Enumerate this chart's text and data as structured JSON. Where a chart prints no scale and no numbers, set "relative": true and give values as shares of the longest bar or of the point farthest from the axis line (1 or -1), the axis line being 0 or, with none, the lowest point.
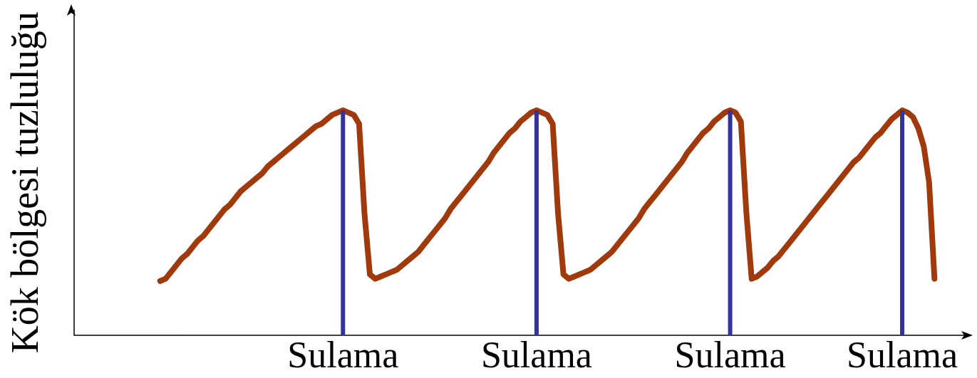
{
  "chart_data": {
    "type": "line",
    "ylabel": "Kök bölgesi tuzluluğu",
    "relative": true,
    "grid": false,
    "marker": "none",
    "line_style": "solid",
    "categories": [
      null,
      null,
      null,
      null,
      null,
      null,
      null,
      null,
      null,
      null,
      null,
      null,
      null,
      null,
      null,
      null,
      null,
      null,
      null,
      null,
      null,
      null,
      null,
      null,
      null,
      null,
      null,
      null,
      null,
      null,
      null,
      null,
      null,
      null,
      null,
      null,
      null,
      null,
      null,
      null,
      null,
      null,
      null,
      null,
      null,
      null,
      null,
      null,
      null,
      null,
      "Sulama",
      null,
      null,
      null,
      null,
      null,
      null,
      null,
      null,
      null,
      null,
      null,
      null,
      null,
      null,
      null,
      null,
      null,
      null,
      null,
      null,
      null,
      null,
      null,
      null,
      null,
      null,
      null,
      null,
      null,
      null,
      null,
      null,
      null,
      null,
      null,
      "Sulama",
      null,
      null,
      null,
      null,
      null,
      null,
      null,
      null,
      null,
      null,
      null,
      null,
      null,
      null,
      null,
      null,
      null,
      null,
      null,
      null,
      null,
      null,
      null,
      null,
      null,
      null,
      null,
      null,
      null,
      null,
      null,
      null,
      null,
      null,
      null,
      "Sulama",
      null,
      null,
      null,
      null,
      null,
      null,
      null,
      null,
      null,
      null,
      null,
      null,
      null,
      null,
      null,
      null,
      null,
      null,
      null,
      null,
      null,
      null,
      null,
      null,
      null,
      null,
      null,
      null,
      null,
      null,
      null,
      "Sulama",
      null,
      null,
      null,
      null,
      null,
      null,
      null,
      null,
      null,
      null,
      null,
      null
    ],
    "series": [
      {
        "color": "#a0390c",
        "values": [
          null,
          null,
          null,
          null,
          null,
          null,
          null,
          null,
          null,
          null,
          null,
          null,
          null,
          null,
          null,
          null,
          0.24,
          0.25,
          0.28,
          0.31,
          0.34,
          0.36,
          0.39,
          0.42,
          0.44,
          0.47,
          0.5,
          0.53,
          0.56,
          0.58,
          0.61,
          0.64,
          0.66,
          0.68,
          0.7,
          0.72,
          0.75,
          0.77,
          0.79,
          0.81,
          0.83,
          0.85,
          0.87,
          0.89,
          0.91,
          0.93,
          0.94,
          0.96,
          0.98,
          0.99,
          1,
          0.99,
          0.98,
          0.94,
          0.54,
          0.27,
          0.25,
          0.26,
          0.27,
          0.28,
          0.29,
          0.31,
          0.33,
          0.35,
          0.37,
          0.4,
          0.43,
          0.46,
          0.49,
          0.52,
          0.56,
          0.59,
          0.62,
          0.65,
          0.68,
          0.71,
          0.74,
          0.77,
          0.81,
          0.84,
          0.87,
          0.9,
          0.92,
          0.95,
          0.97,
          0.99,
          1,
          0.99,
          0.98,
          0.94,
          0.54,
          0.27,
          0.25,
          0.26,
          0.27,
          0.28,
          0.29,
          0.31,
          0.33,
          0.35,
          0.37,
          0.4,
          0.43,
          0.46,
          0.49,
          0.52,
          0.56,
          0.59,
          0.62,
          0.65,
          0.68,
          0.71,
          0.74,
          0.77,
          0.81,
          0.84,
          0.87,
          0.9,
          0.92,
          0.95,
          0.97,
          0.99,
          1,
          0.99,
          0.95,
          0.55,
          0.25,
          0.26,
          0.28,
          0.3,
          0.33,
          0.35,
          0.38,
          0.41,
          0.44,
          0.47,
          0.5,
          0.53,
          0.56,
          0.59,
          0.62,
          0.65,
          0.68,
          0.71,
          0.74,
          0.77,
          0.79,
          0.82,
          0.85,
          0.88,
          0.9,
          0.93,
          0.96,
          0.98,
          1,
          0.99,
          0.97,
          0.92,
          0.84,
          0.68,
          0.25,
          null,
          null,
          null,
          null,
          null,
          null
        ]
      },
      {
        "type": "bar",
        "color": "#3333a0",
        "values": [
          null,
          null,
          null,
          null,
          null,
          null,
          null,
          null,
          null,
          null,
          null,
          null,
          null,
          null,
          null,
          null,
          null,
          null,
          null,
          null,
          null,
          null,
          null,
          null,
          null,
          null,
          null,
          null,
          null,
          null,
          null,
          null,
          null,
          null,
          null,
          null,
          null,
          null,
          null,
          null,
          null,
          null,
          null,
          null,
          null,
          null,
          null,
          null,
          null,
          null,
          1,
          null,
          null,
          null,
          null,
          null,
          null,
          null,
          null,
          null,
          null,
          null,
          null,
          null,
          null,
          null,
          null,
          null,
          null,
          null,
          null,
          null,
          null,
          null,
          null,
          null,
          null,
          null,
          null,
          null,
          null,
          null,
          null,
          null,
          null,
          null,
          1,
          null,
          null,
          null,
          null,
          null,
          null,
          null,
          null,
          null,
          null,
          null,
          null,
          null,
          null,
          null,
          null,
          null,
          null,
          null,
          null,
          null,
          null,
          null,
          null,
          null,
          null,
          null,
          null,
          null,
          null,
          null,
          null,
          null,
          null,
          null,
          1,
          null,
          null,
          null,
          null,
          null,
          null,
          null,
          null,
          null,
          null,
          null,
          null,
          null,
          null,
          null,
          null,
          null,
          null,
          null,
          null,
          null,
          null,
          null,
          null,
          null,
          null,
          null,
          null,
          null,
          null,
          null,
          1,
          null,
          null,
          null,
          null,
          null,
          null,
          null,
          null,
          null,
          null,
          null,
          null
        ]
      }
    ]
  }
}
